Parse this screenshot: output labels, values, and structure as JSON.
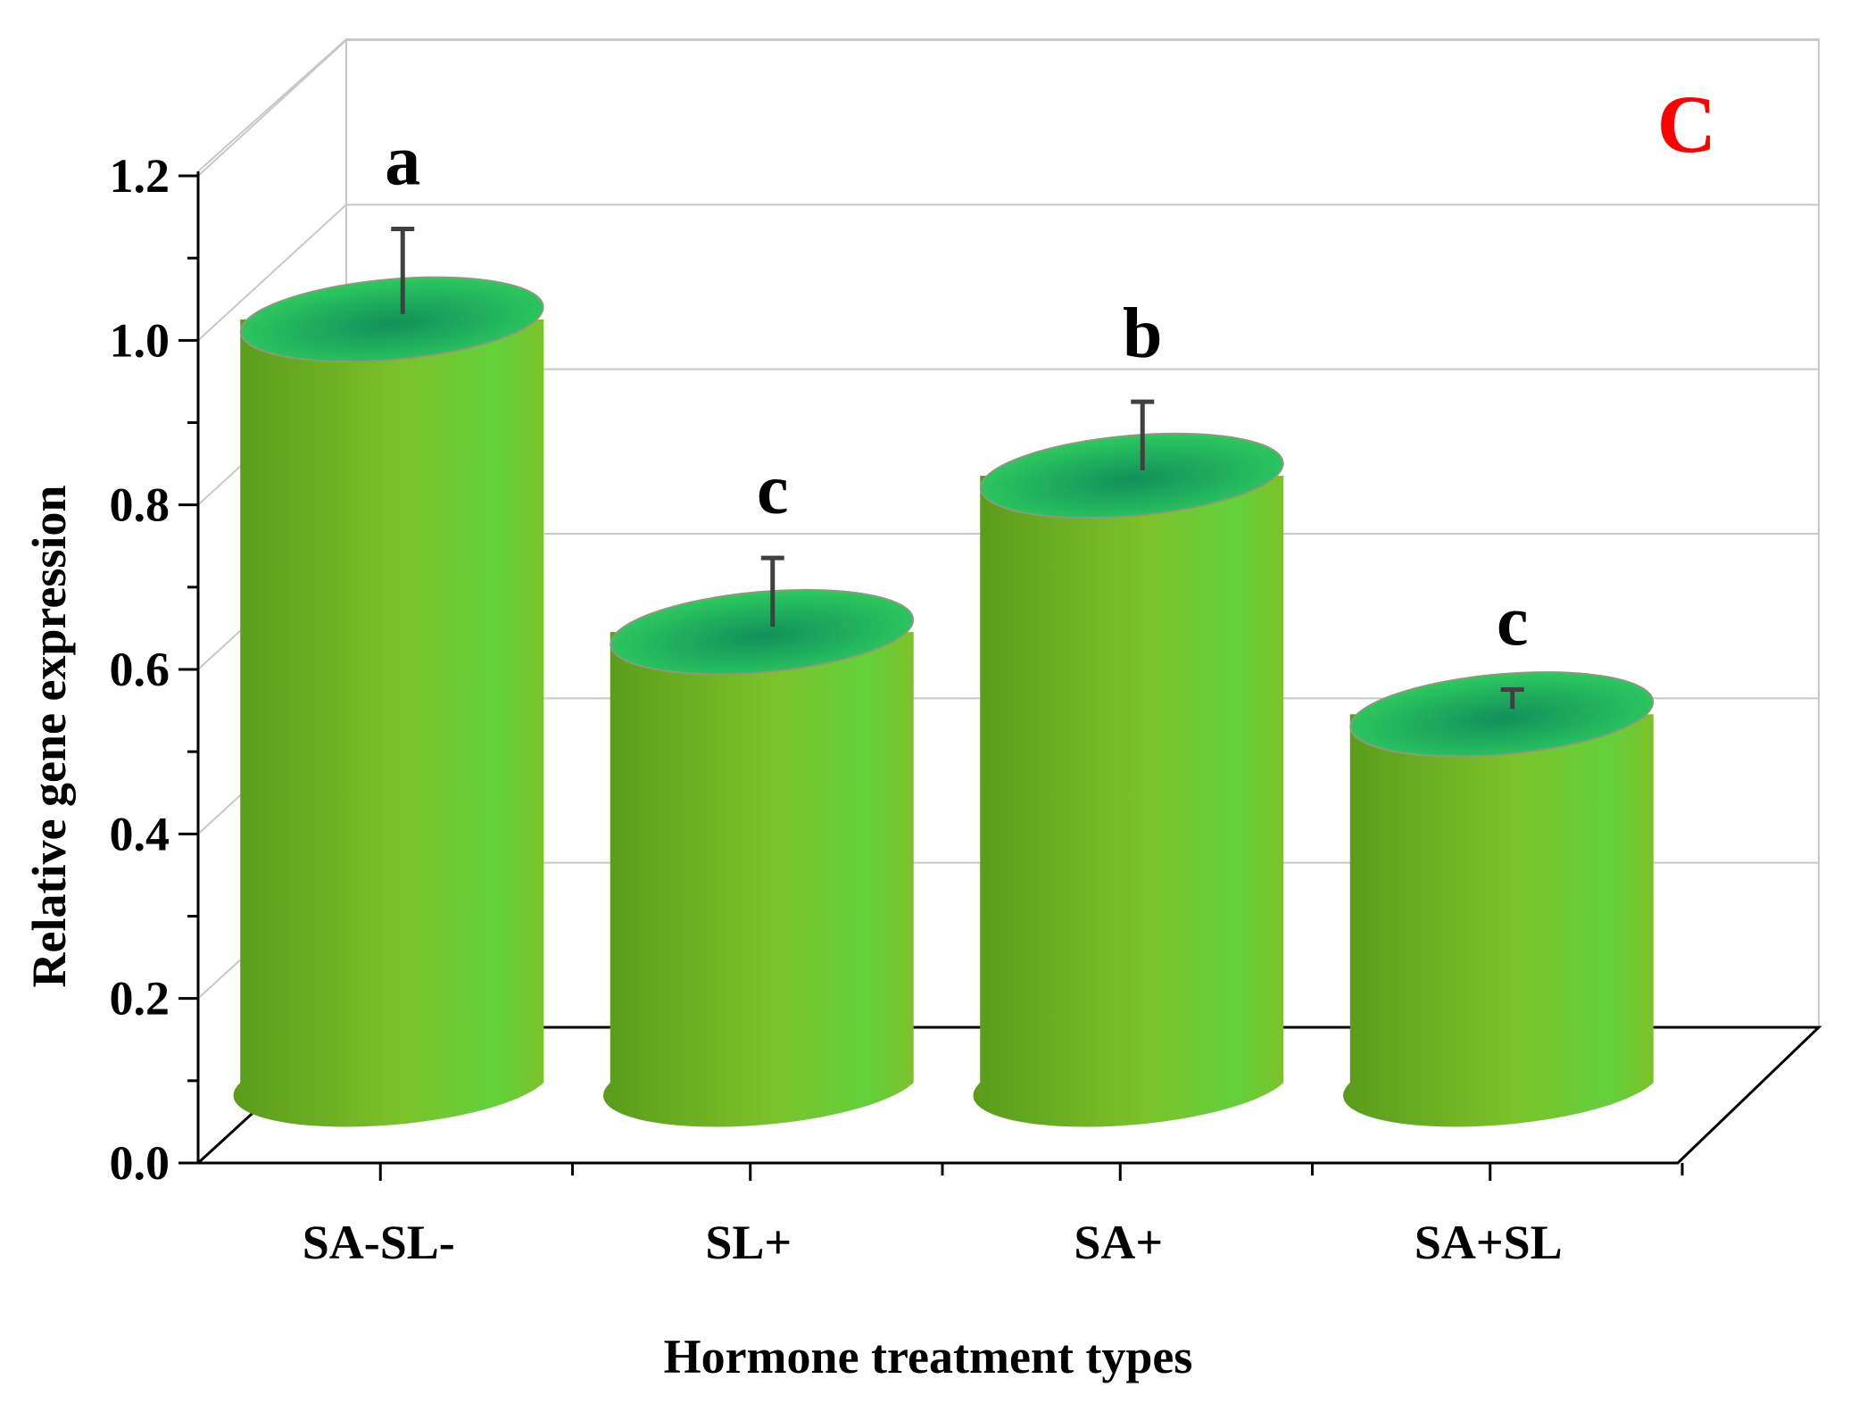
{
  "chart_data": {
    "type": "bar",
    "style": "3d-cylinder",
    "panel_label": "C",
    "xlabel": "Hormone treatment types",
    "ylabel": "Relative gene expression",
    "categories": [
      "SA-SL-",
      "SL+",
      "SA+",
      "SA+SL"
    ],
    "values": [
      1.02,
      0.64,
      0.83,
      0.54
    ],
    "errors": [
      0.11,
      0.09,
      0.09,
      0.03
    ],
    "significance_letters": [
      "a",
      "c",
      "b",
      "c"
    ],
    "ylim": [
      0,
      1.2
    ],
    "yticks": [
      0.0,
      0.2,
      0.4,
      0.6,
      0.8,
      1.0,
      1.2
    ],
    "ytick_labels": [
      "0.0",
      "0.2",
      "0.4",
      "0.6",
      "0.8",
      "1.0",
      "1.2"
    ],
    "grid": true,
    "colors": {
      "bar_light": "#63d13b",
      "bar_mid": "#7cc22a",
      "bar_dark": "#5a9b1a",
      "bar_top_edge": "#2fcf60",
      "bar_top_center": "#12905a",
      "error_bar": "#404040",
      "grid": "#c8c8c8",
      "axis": "#000000",
      "panel_label": "#ff0000"
    }
  }
}
